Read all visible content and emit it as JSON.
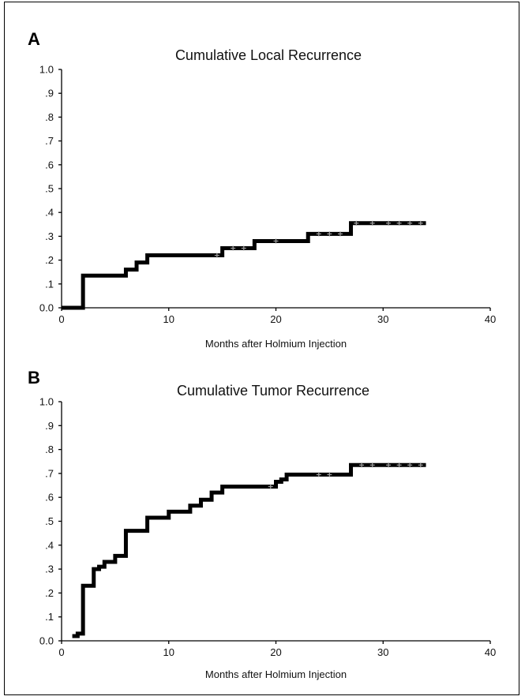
{
  "chart_data": [
    {
      "type": "line",
      "panel": "A",
      "title": "Cumulative Local Recurrence",
      "xlabel": "Months after Holmium Injection",
      "ylabel": "",
      "xlim": [
        0,
        40
      ],
      "ylim": [
        0,
        1.0
      ],
      "x_ticks": [
        0,
        10,
        20,
        30,
        40
      ],
      "x_tick_labels": [
        "0",
        "10",
        "20",
        "30",
        "40"
      ],
      "y_ticks": [
        0,
        0.1,
        0.2,
        0.3,
        0.4,
        0.5,
        0.6,
        0.7,
        0.8,
        0.9,
        1.0
      ],
      "y_tick_labels": [
        "0.0",
        ".1",
        ".2",
        ".3",
        ".4",
        ".5",
        ".6",
        ".7",
        ".8",
        ".9",
        "1.0"
      ],
      "grid": false,
      "legend": "none",
      "series": [
        {
          "style": "step",
          "color": "#000000",
          "x": [
            0,
            2,
            6,
            7,
            8,
            15,
            18,
            23,
            27,
            34
          ],
          "y": [
            0.0,
            0.135,
            0.16,
            0.19,
            0.22,
            0.25,
            0.28,
            0.31,
            0.355,
            0.355
          ]
        }
      ],
      "censored_x": [
        14.5,
        16,
        17,
        20,
        24,
        25,
        26,
        27.5,
        29,
        30.5,
        31.5,
        32.5,
        33.5
      ]
    },
    {
      "type": "line",
      "panel": "B",
      "title": "Cumulative Tumor Recurrence",
      "xlabel": "Months after Holmium Injection",
      "ylabel": "",
      "xlim": [
        0,
        40
      ],
      "ylim": [
        0,
        1.0
      ],
      "x_ticks": [
        0,
        10,
        20,
        30,
        40
      ],
      "x_tick_labels": [
        "0",
        "10",
        "20",
        "30",
        "40"
      ],
      "y_ticks": [
        0,
        0.1,
        0.2,
        0.3,
        0.4,
        0.5,
        0.6,
        0.7,
        0.8,
        0.9,
        1.0
      ],
      "y_tick_labels": [
        "0.0",
        ".1",
        ".2",
        ".3",
        ".4",
        ".5",
        ".6",
        ".7",
        ".8",
        ".9",
        "1.0"
      ],
      "grid": false,
      "legend": "none",
      "series": [
        {
          "style": "step",
          "color": "#000000",
          "x": [
            1,
            1.5,
            2,
            3,
            3.5,
            4,
            5,
            6,
            8,
            10,
            11,
            12,
            13,
            14,
            15,
            20,
            20.5,
            21,
            27,
            34
          ],
          "y": [
            0.02,
            0.03,
            0.23,
            0.3,
            0.31,
            0.33,
            0.355,
            0.46,
            0.515,
            0.54,
            0.54,
            0.565,
            0.59,
            0.62,
            0.645,
            0.665,
            0.675,
            0.695,
            0.735,
            0.735
          ]
        }
      ],
      "censored_x": [
        19.5,
        24,
        25,
        28,
        29,
        30.5,
        31.5,
        32.5,
        33.5
      ]
    }
  ]
}
